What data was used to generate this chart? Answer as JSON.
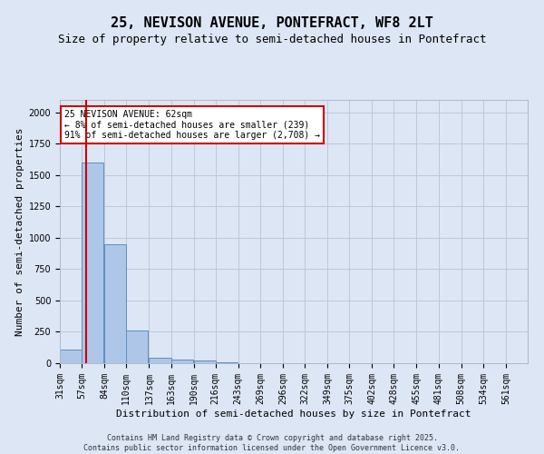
{
  "title": "25, NEVISON AVENUE, PONTEFRACT, WF8 2LT",
  "subtitle": "Size of property relative to semi-detached houses in Pontefract",
  "xlabel": "Distribution of semi-detached houses by size in Pontefract",
  "ylabel": "Number of semi-detached properties",
  "bin_labels": [
    "31sqm",
    "57sqm",
    "84sqm",
    "110sqm",
    "137sqm",
    "163sqm",
    "190sqm",
    "216sqm",
    "243sqm",
    "269sqm",
    "296sqm",
    "322sqm",
    "349sqm",
    "375sqm",
    "402sqm",
    "428sqm",
    "455sqm",
    "481sqm",
    "508sqm",
    "534sqm",
    "561sqm"
  ],
  "bin_edges": [
    31,
    57,
    84,
    110,
    137,
    163,
    190,
    216,
    243,
    269,
    296,
    322,
    349,
    375,
    402,
    428,
    455,
    481,
    508,
    534,
    561
  ],
  "bar_heights": [
    110,
    1600,
    950,
    260,
    40,
    30,
    20,
    5,
    0,
    0,
    0,
    0,
    0,
    0,
    0,
    0,
    0,
    0,
    0,
    0
  ],
  "bar_color": "#aec6e8",
  "bar_edge_color": "#5a8fc2",
  "property_size": 62,
  "red_line_color": "#cc0000",
  "annotation_text": "25 NEVISON AVENUE: 62sqm\n← 8% of semi-detached houses are smaller (239)\n91% of semi-detached houses are larger (2,708) →",
  "annotation_box_color": "#cc0000",
  "annotation_text_color": "#000000",
  "ylim": [
    0,
    2100
  ],
  "background_color": "#dce6f5",
  "plot_bg_color": "#dce6f5",
  "footer_line1": "Contains HM Land Registry data © Crown copyright and database right 2025.",
  "footer_line2": "Contains public sector information licensed under the Open Government Licence v3.0.",
  "title_fontsize": 11,
  "subtitle_fontsize": 9,
  "axis_label_fontsize": 8,
  "tick_fontsize": 7,
  "annotation_fontsize": 7,
  "footer_fontsize": 6,
  "grid_color": "#c0c8d8"
}
